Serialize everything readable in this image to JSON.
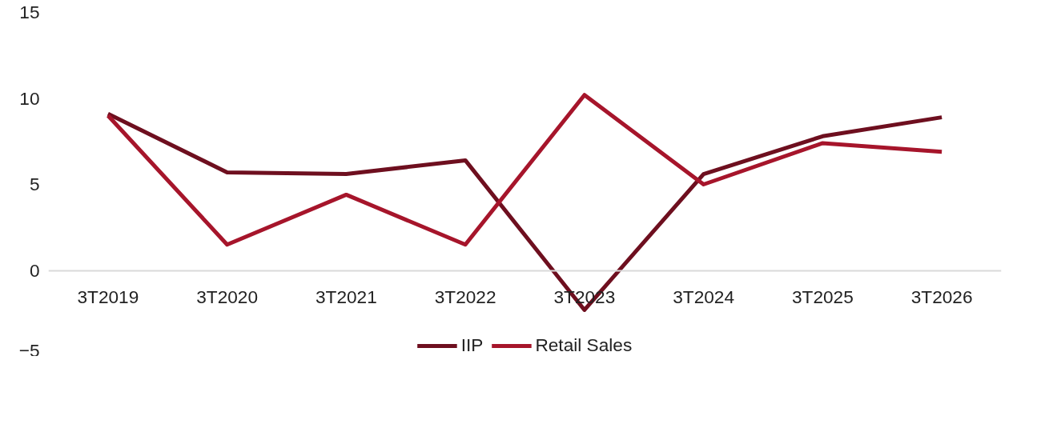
{
  "chart_data": {
    "type": "line",
    "categories": [
      "3T2019",
      "3T2020",
      "3T2021",
      "3T2022",
      "3T2023",
      "3T2024",
      "3T2025",
      "3T2026"
    ],
    "series": [
      {
        "name": "IIP",
        "color": "#6e0f1f",
        "values": [
          9.1,
          5.7,
          5.6,
          6.4,
          -2.3,
          5.6,
          7.8,
          8.9
        ]
      },
      {
        "name": "Retail Sales",
        "color": "#a6152b",
        "values": [
          9.0,
          1.5,
          4.4,
          1.5,
          10.2,
          5.0,
          7.4,
          6.9
        ]
      }
    ],
    "ylim": [
      -5,
      15
    ],
    "yticks": [
      -5,
      0,
      5,
      10,
      15
    ],
    "grid": false,
    "legend": "bottom",
    "marker": "none",
    "line_style": "solid"
  }
}
